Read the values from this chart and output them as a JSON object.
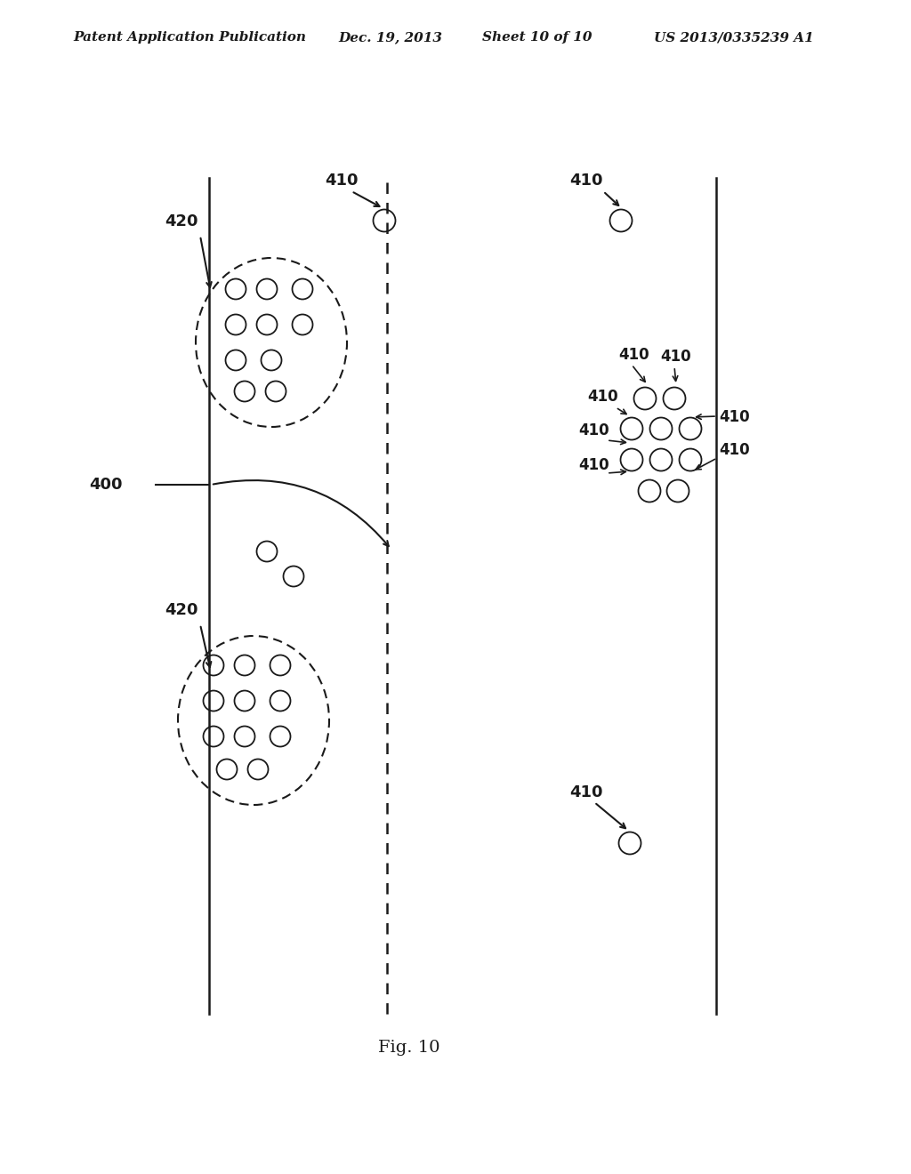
{
  "bg_color": "#ffffff",
  "header_text": "Patent Application Publication",
  "header_date": "Dec. 19, 2013",
  "header_sheet": "Sheet 10 of 10",
  "header_patent": "US 2013/0335239 A1",
  "fig_label": "Fig. 10",
  "line_color": "#1a1a1a",
  "label_fontsize": 13,
  "header_fontsize": 11
}
